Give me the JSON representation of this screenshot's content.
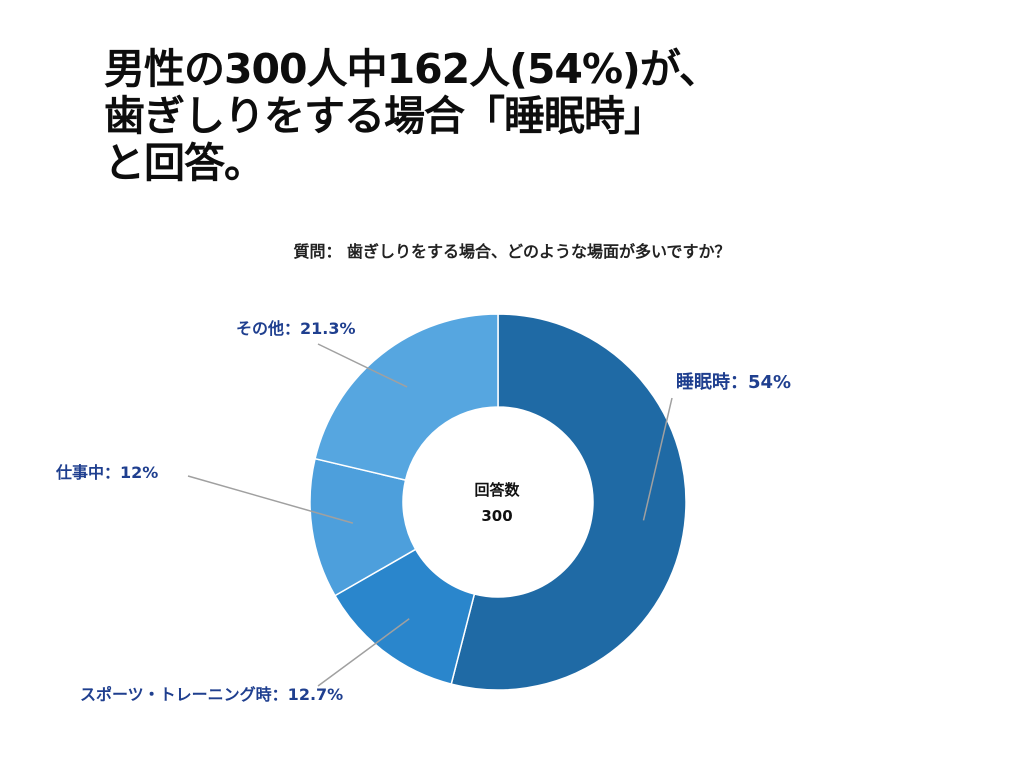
{
  "headline": {
    "line1": "男性の300人中162人(54%)が、",
    "line2": "歯ぎしりをする場合「睡眠時」",
    "line3": "と回答。"
  },
  "question": "質問： 歯ぎしりをする場合、どのような場面が多いですか？",
  "chart_data": {
    "type": "pie",
    "variant": "donut",
    "center_label": "回答数",
    "center_value": "300",
    "slices": [
      {
        "label": "睡眠時：54%",
        "value": 54,
        "color": "#1f6aa5"
      },
      {
        "label": "スポーツ・トレーニング時：12.7%",
        "value": 12.7,
        "color": "#2a86cc"
      },
      {
        "label": "仕事中：12%",
        "value": 12,
        "color": "#4d9fdc"
      },
      {
        "label": "その他：21.3%",
        "value": 21.3,
        "color": "#56a6e0"
      }
    ],
    "label_color": "#1f3f8f",
    "leader_color": "#a0a0a0"
  }
}
